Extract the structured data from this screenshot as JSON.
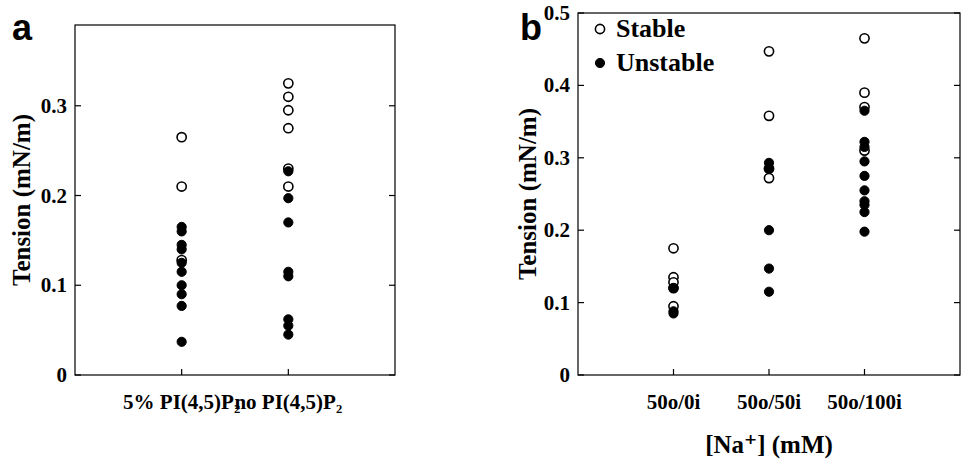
{
  "chart_data": [
    {
      "type": "scatter",
      "title": "a",
      "y_label": "Tension (mN/m)",
      "categories": [
        "5% PI(4,5)P₂",
        "no PI(4,5)P₂"
      ],
      "ylim": [
        0,
        0.39
      ],
      "yticks": [
        0,
        0.1,
        0.2,
        0.3
      ],
      "series": [
        {
          "marker": "open",
          "color": "#000000",
          "x": [
            "5% PI(4,5)P₂",
            "5% PI(4,5)P₂",
            "5% PI(4,5)P₂",
            "no PI(4,5)P₂",
            "no PI(4,5)P₂",
            "no PI(4,5)P₂",
            "no PI(4,5)P₂",
            "no PI(4,5)P₂",
            "no PI(4,5)P₂"
          ],
          "values": [
            0.265,
            0.21,
            0.128,
            0.325,
            0.31,
            0.295,
            0.275,
            0.23,
            0.21
          ]
        },
        {
          "marker": "filled",
          "color": "#000000",
          "x": [
            "5% PI(4,5)P₂",
            "5% PI(4,5)P₂",
            "5% PI(4,5)P₂",
            "5% PI(4,5)P₂",
            "5% PI(4,5)P₂",
            "5% PI(4,5)P₂",
            "5% PI(4,5)P₂",
            "5% PI(4,5)P₂",
            "5% PI(4,5)P₂",
            "5% PI(4,5)P₂",
            "no PI(4,5)P₂",
            "no PI(4,5)P₂",
            "no PI(4,5)P₂",
            "no PI(4,5)P₂",
            "no PI(4,5)P₂",
            "no PI(4,5)P₂",
            "no PI(4,5)P₂",
            "no PI(4,5)P₂"
          ],
          "values": [
            0.165,
            0.16,
            0.145,
            0.14,
            0.125,
            0.115,
            0.1,
            0.09,
            0.077,
            0.037,
            0.227,
            0.197,
            0.17,
            0.115,
            0.11,
            0.062,
            0.055,
            0.045
          ]
        }
      ]
    },
    {
      "type": "scatter",
      "title": "b",
      "y_label": "Tension (mN/m)",
      "x_label": "[Na⁺] (mM)",
      "categories": [
        "50o/0i",
        "50o/50i",
        "50o/100i"
      ],
      "ylim": [
        0,
        0.5
      ],
      "yticks": [
        0,
        0.1,
        0.2,
        0.3,
        0.4,
        0.5
      ],
      "legend": "upper left",
      "series": [
        {
          "name": "Stable",
          "marker": "open",
          "color": "#000000",
          "x": [
            "50o/0i",
            "50o/0i",
            "50o/0i",
            "50o/0i",
            "50o/0i",
            "50o/50i",
            "50o/50i",
            "50o/50i",
            "50o/50i",
            "50o/100i",
            "50o/100i",
            "50o/100i",
            "50o/100i"
          ],
          "values": [
            0.175,
            0.135,
            0.128,
            0.12,
            0.095,
            0.447,
            0.358,
            0.285,
            0.272,
            0.465,
            0.39,
            0.37,
            0.31
          ]
        },
        {
          "name": "Unstable",
          "marker": "filled",
          "color": "#000000",
          "x": [
            "50o/0i",
            "50o/0i",
            "50o/0i",
            "50o/50i",
            "50o/50i",
            "50o/50i",
            "50o/50i",
            "50o/50i",
            "50o/100i",
            "50o/100i",
            "50o/100i",
            "50o/100i",
            "50o/100i",
            "50o/100i",
            "50o/100i",
            "50o/100i",
            "50o/100i",
            "50o/100i"
          ],
          "values": [
            0.12,
            0.088,
            0.085,
            0.293,
            0.285,
            0.2,
            0.147,
            0.115,
            0.365,
            0.322,
            0.315,
            0.295,
            0.275,
            0.255,
            0.24,
            0.235,
            0.225,
            0.198
          ]
        }
      ]
    }
  ]
}
